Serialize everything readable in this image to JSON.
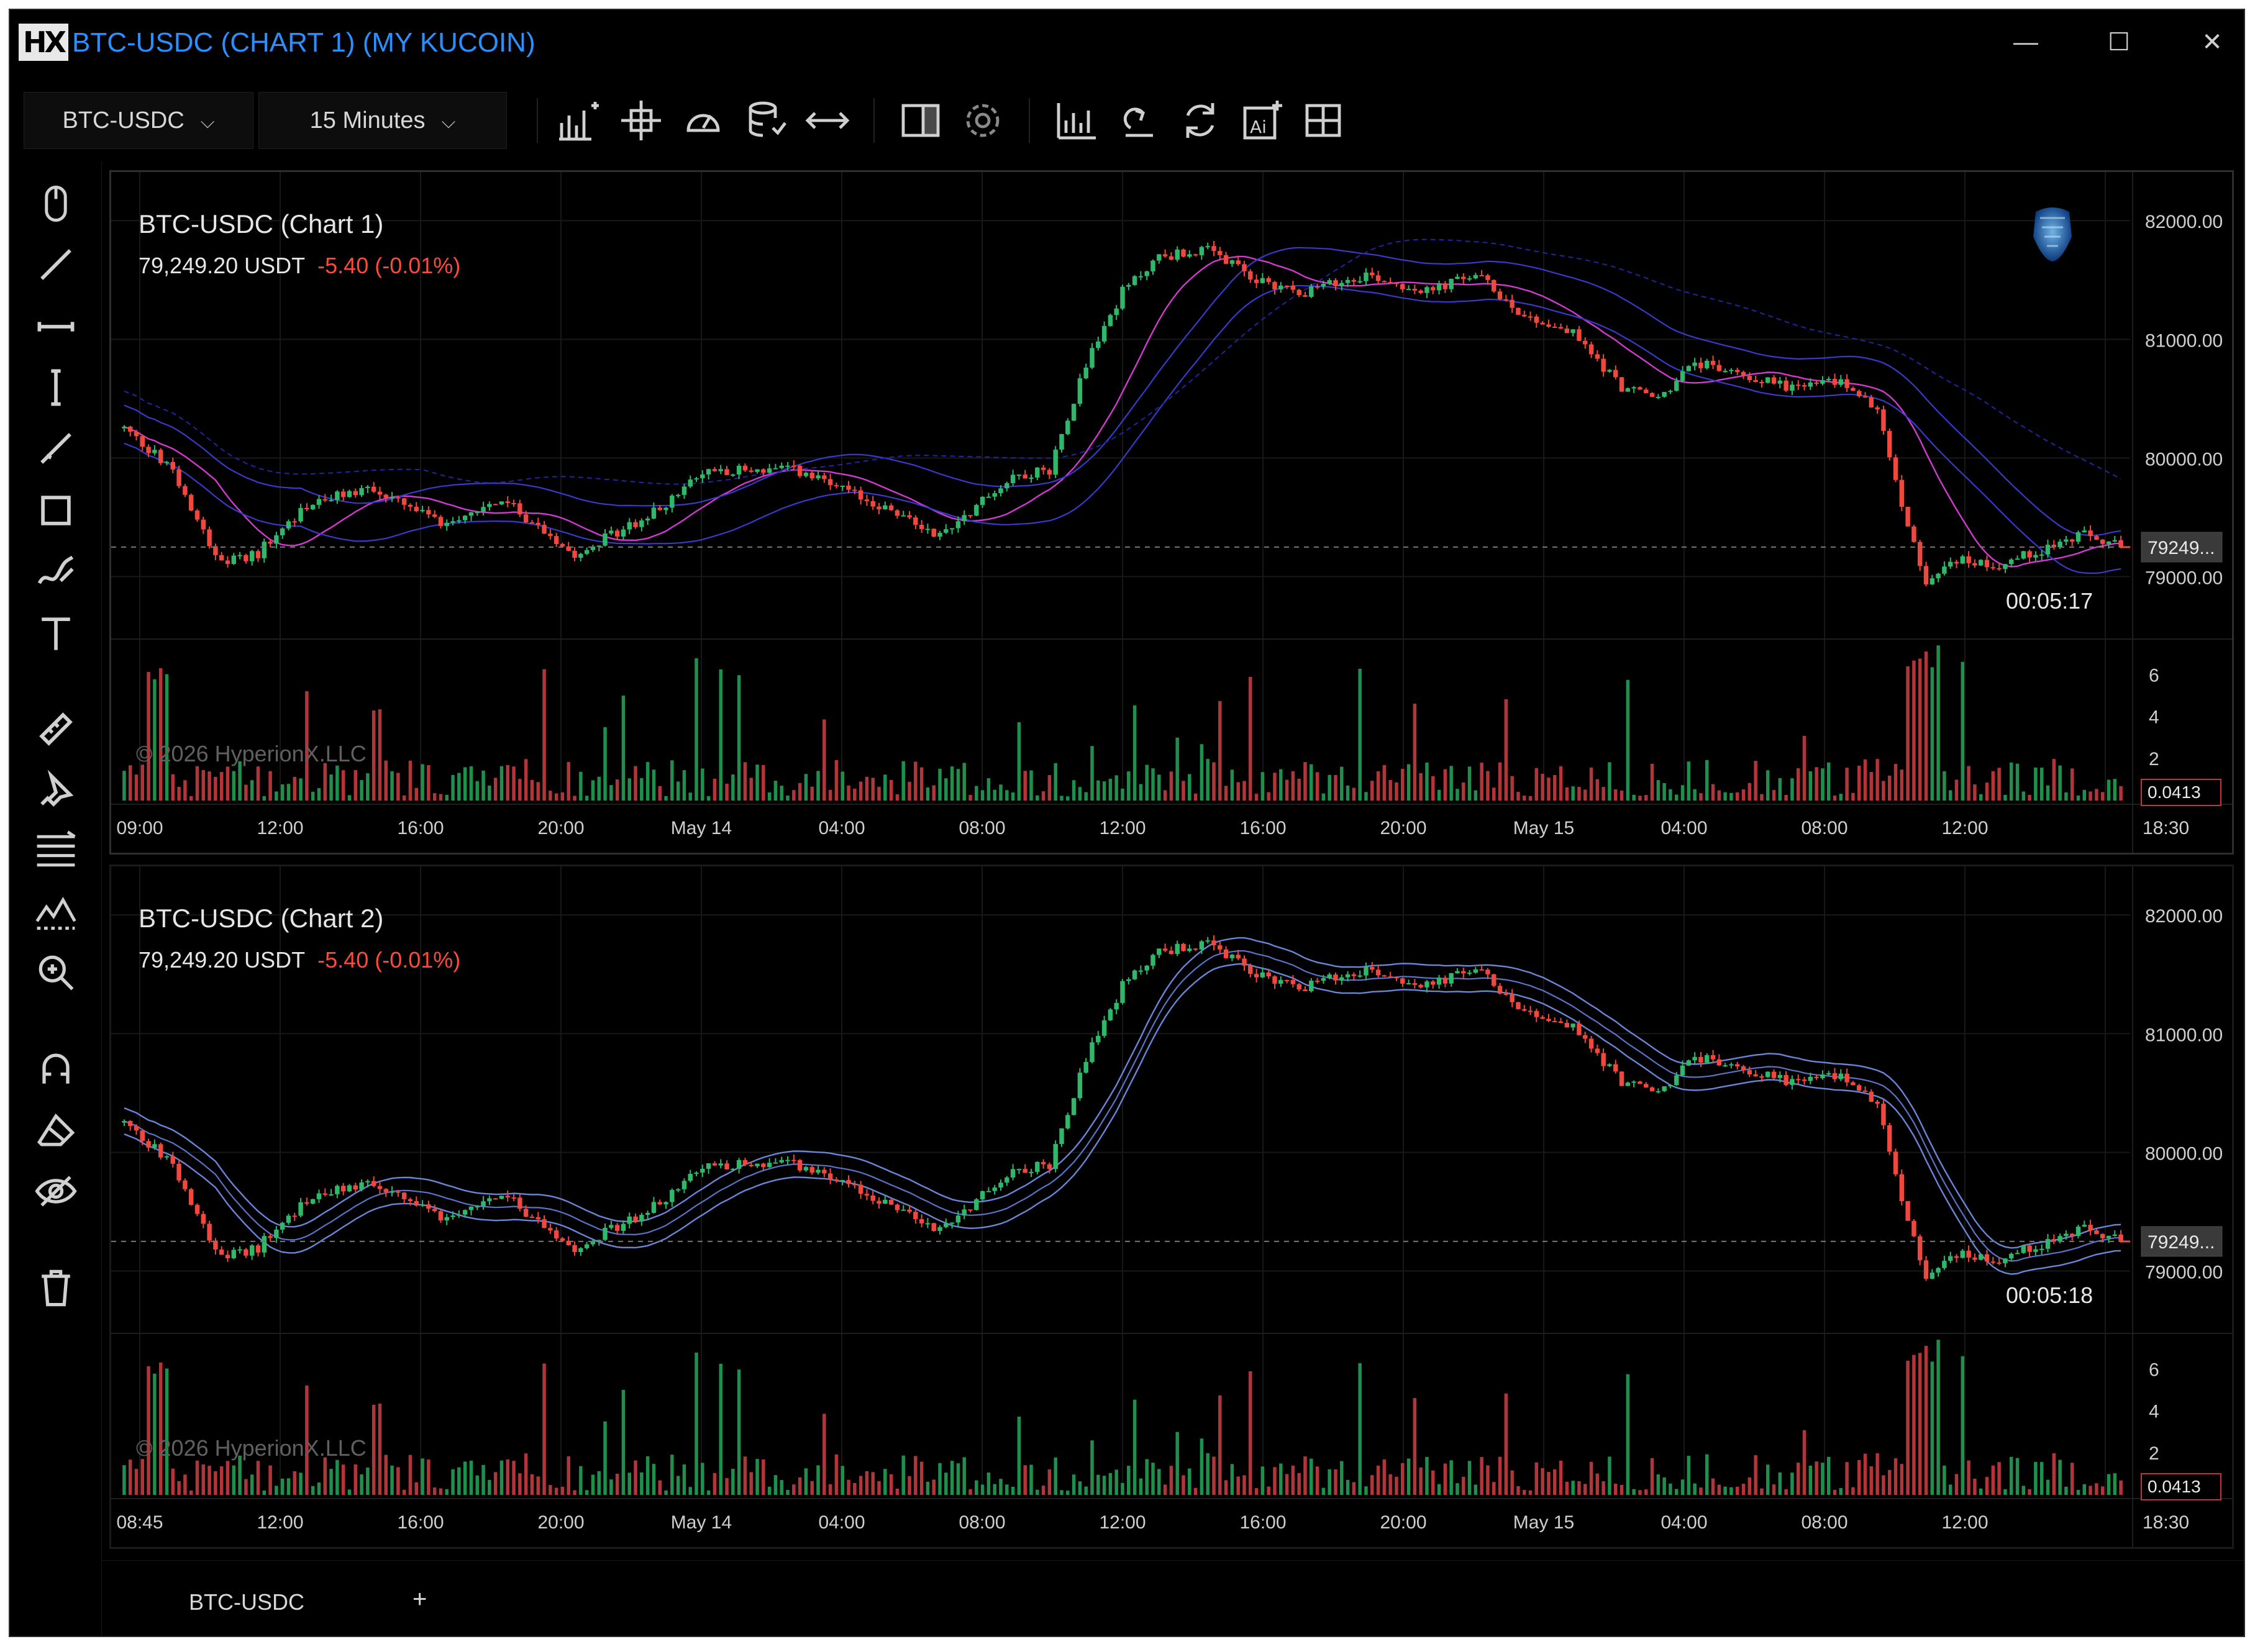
{
  "window": {
    "title": "BTC-USDC (CHART 1) (MY KUCOIN)",
    "logo_text": "HX",
    "minimize": "—",
    "maximize": "☐",
    "close": "✕"
  },
  "toolbar": {
    "symbol": "BTC-USDC",
    "interval": "15 Minutes",
    "chevron": "⌵",
    "icons": [
      "indicators-icon",
      "crosshair-icon",
      "speedometer-icon",
      "database-icon",
      "arrows-horizontal-icon",
      "layout-panel-icon",
      "gear-icon",
      "bar-chart-icon",
      "replay-icon",
      "refresh-icon",
      "ai-icon",
      "grid-icon"
    ]
  },
  "left_tools": [
    "mouse-pointer-icon",
    "trend-line-icon",
    "horizontal-line-icon",
    "vertical-line-icon",
    "ray-icon",
    "rectangle-icon",
    "brush-icon",
    "text-icon",
    "ruler-icon",
    "pin-icon",
    "fib-lines-icon",
    "pattern-icon",
    "zoom-icon",
    "magnet-icon",
    "eraser-icon",
    "eye-icon",
    "trash-icon"
  ],
  "panels": [
    {
      "title": "BTC-USDC (Chart 1)",
      "price": "79,249.20 USDT",
      "change": "-5.40 (-0.01%)",
      "timer": "00:05:17",
      "last_price_label": "79249...",
      "volume_value_label": "0.0413",
      "watermark": "© 2026 HyperionX.LLC",
      "x_ticks": [
        "09:00",
        "12:00",
        "16:00",
        "20:00",
        "May 14",
        "04:00",
        "08:00",
        "12:00",
        "16:00",
        "20:00",
        "May 15",
        "04:00",
        "08:00",
        "12:00",
        "18:30"
      ],
      "price_ticks": [
        "82000.00",
        "81000.00",
        "80000.00",
        "79000.00"
      ],
      "volume_ticks": [
        "6",
        "4",
        "2"
      ],
      "has_logo": true
    },
    {
      "title": "BTC-USDC (Chart 2)",
      "price": "79,249.20 USDT",
      "change": "-5.40 (-0.01%)",
      "timer": "00:05:18",
      "last_price_label": "79249...",
      "volume_value_label": "0.0413",
      "watermark": "© 2026 HyperionX.LLC",
      "x_ticks": [
        "08:45",
        "12:00",
        "16:00",
        "20:00",
        "May 14",
        "04:00",
        "08:00",
        "12:00",
        "16:00",
        "20:00",
        "May 15",
        "04:00",
        "08:00",
        "12:00",
        "18:30"
      ],
      "price_ticks": [
        "82000.00",
        "81000.00",
        "80000.00",
        "79000.00"
      ],
      "volume_ticks": [
        "6",
        "4",
        "2"
      ],
      "has_logo": false
    }
  ],
  "chart_data": {
    "type": "candlestick",
    "price_range": [
      78600,
      82200
    ],
    "last_price": 79249.2,
    "volume_range": [
      0,
      7.5
    ],
    "price_anchors": [
      {
        "i": 0,
        "p": 80250
      },
      {
        "i": 8,
        "p": 79900
      },
      {
        "i": 16,
        "p": 79100
      },
      {
        "i": 22,
        "p": 79200
      },
      {
        "i": 30,
        "p": 79600
      },
      {
        "i": 40,
        "p": 79750
      },
      {
        "i": 52,
        "p": 79450
      },
      {
        "i": 62,
        "p": 79650
      },
      {
        "i": 74,
        "p": 79200
      },
      {
        "i": 86,
        "p": 79500
      },
      {
        "i": 96,
        "p": 79900
      },
      {
        "i": 110,
        "p": 79900
      },
      {
        "i": 124,
        "p": 79600
      },
      {
        "i": 134,
        "p": 79350
      },
      {
        "i": 146,
        "p": 79850
      },
      {
        "i": 152,
        "p": 79900
      },
      {
        "i": 158,
        "p": 80800
      },
      {
        "i": 164,
        "p": 81400
      },
      {
        "i": 170,
        "p": 81700
      },
      {
        "i": 178,
        "p": 81750
      },
      {
        "i": 186,
        "p": 81500
      },
      {
        "i": 194,
        "p": 81400
      },
      {
        "i": 204,
        "p": 81550
      },
      {
        "i": 214,
        "p": 81400
      },
      {
        "i": 222,
        "p": 81550
      },
      {
        "i": 230,
        "p": 81200
      },
      {
        "i": 238,
        "p": 81050
      },
      {
        "i": 246,
        "p": 80600
      },
      {
        "i": 252,
        "p": 80500
      },
      {
        "i": 258,
        "p": 80800
      },
      {
        "i": 266,
        "p": 80700
      },
      {
        "i": 274,
        "p": 80600
      },
      {
        "i": 282,
        "p": 80650
      },
      {
        "i": 288,
        "p": 80400
      },
      {
        "i": 292,
        "p": 79600
      },
      {
        "i": 296,
        "p": 78950
      },
      {
        "i": 300,
        "p": 79150
      },
      {
        "i": 308,
        "p": 79100
      },
      {
        "i": 316,
        "p": 79250
      },
      {
        "i": 322,
        "p": 79350
      },
      {
        "i": 328,
        "p": 79249
      }
    ],
    "candle_count": 329
  },
  "tabs": {
    "active": "BTC-USDC",
    "add": "+"
  }
}
